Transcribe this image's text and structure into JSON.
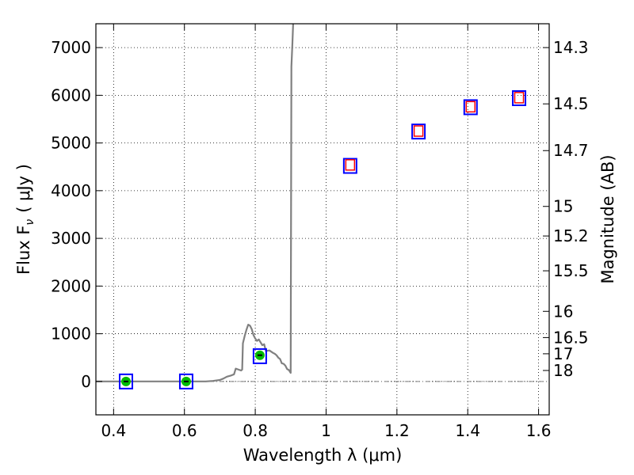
{
  "chart_data": {
    "type": "scatter",
    "xlabel": "Wavelength  λ (μm)",
    "ylabel": "Flux  F",
    "ylabel_sub": "ν",
    "ylabel_unit": "( μJy )",
    "y2label": "Magnitude (AB)",
    "xlim": [
      0.35,
      1.63
    ],
    "ylim": [
      -700,
      7500
    ],
    "grid": true,
    "x_ticks": [
      0.4,
      0.6,
      0.8,
      1.0,
      1.2,
      1.4,
      1.6
    ],
    "x_tick_labels": [
      "0.4",
      "0.6",
      "0.8",
      "1",
      "1.2",
      "1.4",
      "1.6"
    ],
    "y_ticks": [
      0,
      1000,
      2000,
      3000,
      4000,
      5000,
      6000,
      7000
    ],
    "y_tick_labels": [
      "0",
      "1000",
      "2000",
      "3000",
      "4000",
      "5000",
      "6000",
      "7000"
    ],
    "magnitude_ticks": [
      {
        "label": "14.3",
        "flux": 7000
      },
      {
        "label": "14.5",
        "flux": 5820
      },
      {
        "label": "14.7",
        "flux": 4840
      },
      {
        "label": "15",
        "flux": 3670
      },
      {
        "label": "15.2",
        "flux": 3050
      },
      {
        "label": "15.5",
        "flux": 2320
      },
      {
        "label": "16",
        "flux": 1470
      },
      {
        "label": "16.5",
        "flux": 920
      },
      {
        "label": "17",
        "flux": 580
      },
      {
        "label": "18",
        "flux": 230
      }
    ],
    "series": [
      {
        "name": "model spectrum",
        "type": "line",
        "color": "#808080",
        "x": [
          0.35,
          0.66,
          0.68,
          0.7,
          0.71,
          0.72,
          0.73,
          0.74,
          0.745,
          0.76,
          0.763,
          0.765,
          0.77,
          0.775,
          0.78,
          0.785,
          0.79,
          0.795,
          0.8,
          0.805,
          0.81,
          0.815,
          0.82,
          0.825,
          0.83,
          0.84,
          0.85,
          0.855,
          0.86,
          0.865,
          0.87,
          0.875,
          0.88,
          0.885,
          0.89,
          0.895,
          0.9,
          0.902,
          0.905,
          0.907
        ],
        "y": [
          0,
          0,
          10,
          30,
          60,
          100,
          120,
          150,
          270,
          230,
          250,
          800,
          950,
          1080,
          1190,
          1170,
          1100,
          970,
          900,
          850,
          880,
          820,
          760,
          780,
          640,
          650,
          600,
          580,
          550,
          500,
          470,
          380,
          370,
          330,
          260,
          240,
          180,
          6600,
          7100,
          7500
        ]
      },
      {
        "name": "blue observed points",
        "type": "scatter",
        "marker": "square",
        "color": "#0000ff",
        "x": [
          0.435,
          0.605,
          0.813,
          1.068,
          1.261,
          1.408,
          1.545
        ],
        "y": [
          0,
          0,
          530,
          4520,
          5240,
          5750,
          5940
        ]
      },
      {
        "name": "red model points",
        "type": "scatter",
        "marker": "square",
        "color": "#ff0000",
        "x": [
          1.068,
          1.261,
          1.408,
          1.545
        ],
        "y": [
          4540,
          5250,
          5760,
          5950
        ]
      },
      {
        "name": "green detections",
        "type": "scatter",
        "marker": "circle",
        "color": "#00bb00",
        "x": [
          0.435,
          0.605,
          0.813
        ],
        "y": [
          0,
          0,
          550
        ]
      }
    ],
    "reference_line": {
      "y": 0,
      "style": "dash-dot",
      "color": "#808080"
    }
  }
}
